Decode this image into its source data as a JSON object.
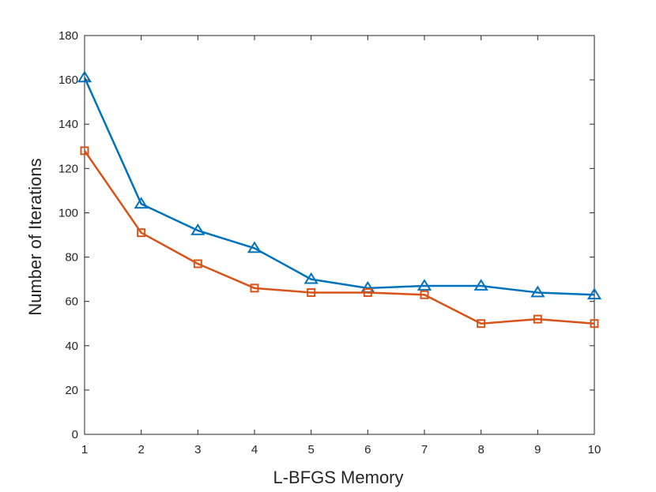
{
  "chart_data": {
    "type": "line",
    "title": "",
    "xlabel": "L-BFGS Memory",
    "ylabel": "Number of Iterations",
    "xlim": [
      1,
      10
    ],
    "ylim": [
      0,
      180
    ],
    "xticks": [
      1,
      2,
      3,
      4,
      5,
      6,
      7,
      8,
      9,
      10
    ],
    "yticks": [
      0,
      20,
      40,
      60,
      80,
      100,
      120,
      140,
      160,
      180
    ],
    "grid": false,
    "legend": "none",
    "x": [
      1,
      2,
      3,
      4,
      5,
      6,
      7,
      8,
      9,
      10
    ],
    "series": [
      {
        "marker": "triangle",
        "color": "#0072BD",
        "values": [
          161,
          104,
          92,
          84,
          70,
          66,
          67,
          67,
          64,
          63
        ]
      },
      {
        "marker": "square",
        "color": "#D95319",
        "values": [
          128,
          91,
          77,
          66,
          64,
          64,
          63,
          50,
          52,
          50
        ]
      }
    ]
  }
}
